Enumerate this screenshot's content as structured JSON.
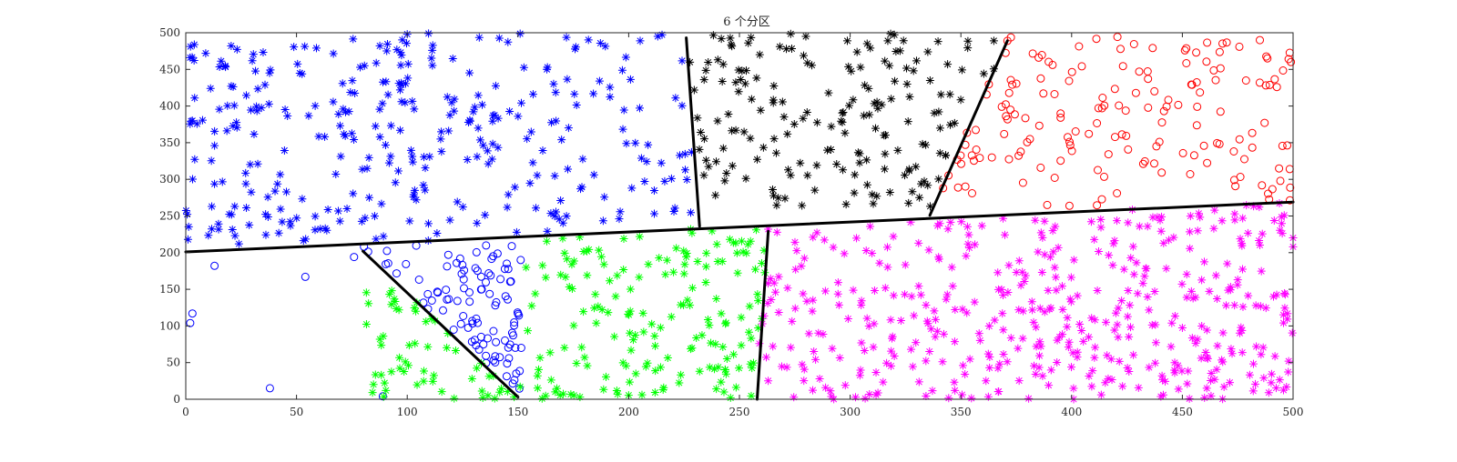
{
  "chart_data": {
    "type": "scatter",
    "title": "6 个分区",
    "xlabel": "",
    "ylabel": "",
    "xlim": [
      0,
      500
    ],
    "ylim": [
      0,
      500
    ],
    "x_ticks": [
      0,
      50,
      100,
      150,
      200,
      250,
      300,
      350,
      400,
      450,
      500
    ],
    "y_ticks": [
      0,
      50,
      100,
      150,
      200,
      250,
      300,
      350,
      400,
      450,
      500
    ],
    "grid": false,
    "legend": "none",
    "colors": {
      "blue": "#0000ff",
      "black": "#000000",
      "red": "#ff0000",
      "green": "#00ff00",
      "magenta": "#ff00ff",
      "axis": "#262626",
      "partition_line": "#000000"
    },
    "boundaries": [
      {
        "x": [
          0,
          500
        ],
        "y": [
          201,
          269
        ]
      },
      {
        "x": [
          226,
          232
        ],
        "y": [
          493,
          236
        ]
      },
      {
        "x": [
          336,
          371
        ],
        "y": [
          251,
          489
        ]
      },
      {
        "x": [
          80,
          150
        ],
        "y": [
          202,
          3
        ]
      },
      {
        "x": [
          263,
          258
        ],
        "y": [
          229,
          0
        ]
      }
    ],
    "series": [
      {
        "color": "blue",
        "marker": "asterisk",
        "region": [
          0,
          232,
          215,
          500
        ],
        "count": 320,
        "seed": 11,
        "points": [
          [
            1,
            218
          ],
          [
            9,
            472
          ],
          [
            4,
            411
          ],
          [
            3,
            380
          ],
          [
            24,
            212
          ],
          [
            13,
            346
          ],
          [
            59,
            479
          ],
          [
            100,
            498
          ]
        ]
      },
      {
        "color": "black",
        "marker": "asterisk",
        "region": [
          226,
          368,
          262,
          500
        ],
        "count": 170,
        "seed": 23,
        "points": [
          [
            254,
            486
          ],
          [
            280,
            495
          ],
          [
            317,
            489
          ],
          [
            344,
            457
          ],
          [
            340,
            392
          ],
          [
            312,
            277
          ],
          [
            265,
            286
          ]
        ]
      },
      {
        "color": "red",
        "marker": "circle",
        "region": [
          336,
          500,
          262,
          495
        ],
        "count": 160,
        "seed": 37,
        "points": [
          [
            371,
            489
          ],
          [
            498,
            464
          ],
          [
            485,
            490
          ],
          [
            342,
            288
          ],
          [
            389,
            265
          ],
          [
            499,
            460
          ]
        ]
      },
      {
        "color": "blue",
        "marker": "circle",
        "region": [
          0,
          152,
          0,
          210
        ],
        "count": 100,
        "seed": 41,
        "points": [
          [
            3,
            117
          ],
          [
            13,
            182
          ],
          [
            54,
            167
          ],
          [
            2,
            104
          ],
          [
            38,
            15
          ],
          [
            76,
            194
          ],
          [
            89,
            4
          ]
        ]
      },
      {
        "color": "green",
        "marker": "asterisk",
        "region": [
          80,
          262,
          0,
          232
        ],
        "count": 230,
        "seed": 53,
        "points": [
          [
            151,
            17
          ],
          [
            178,
            3
          ],
          [
            206,
            6
          ],
          [
            246,
            2
          ],
          [
            228,
            232
          ],
          [
            255,
            48
          ]
        ]
      },
      {
        "color": "magenta",
        "marker": "asterisk",
        "region": [
          258,
          500,
          0,
          268
        ],
        "count": 450,
        "seed": 67,
        "points": [
          [
            259,
            76
          ],
          [
            263,
            232
          ],
          [
            500,
            208
          ],
          [
            460,
            2
          ],
          [
            498,
            52
          ],
          [
            496,
            251
          ]
        ]
      }
    ]
  }
}
